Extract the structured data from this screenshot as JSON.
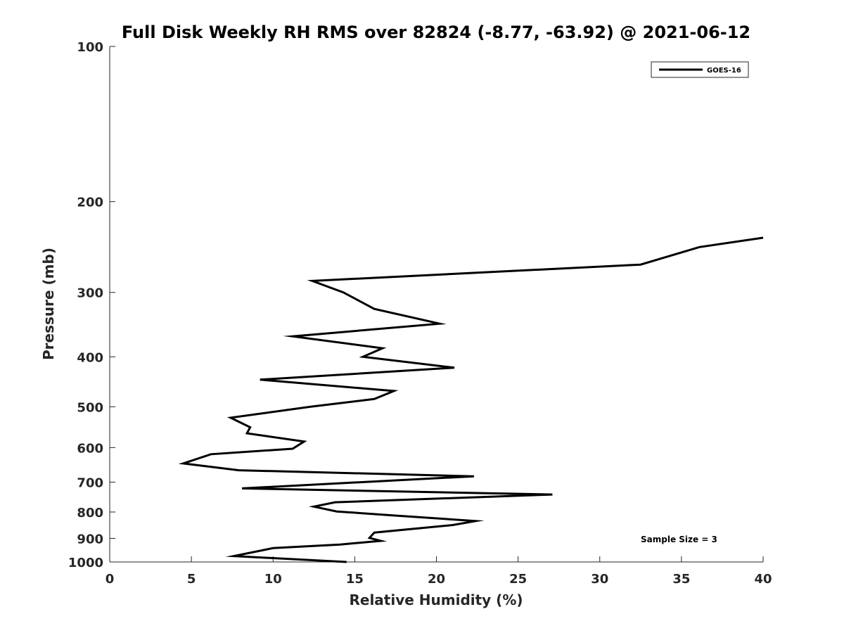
{
  "chart_data": {
    "type": "line",
    "title": "Full Disk Weekly RH RMS over 82824 (-8.77, -63.92) @ 2021-06-12",
    "xlabel": "Relative Humidity (%)",
    "ylabel": "Pressure (mb)",
    "xlim": [
      0,
      40
    ],
    "ylim": [
      100,
      1000
    ],
    "y_scale": "log",
    "y_reversed": true,
    "x_ticks": [
      "0",
      "5",
      "10",
      "15",
      "20",
      "25",
      "30",
      "35",
      "40"
    ],
    "y_ticks": [
      "100",
      "200",
      "300",
      "400",
      "500",
      "600",
      "700",
      "800",
      "900",
      "1000"
    ],
    "grid": false,
    "legend_position": "top-right",
    "annotation": "Sample Size = 3",
    "series": [
      {
        "name": "GOES-16",
        "color": "#000000",
        "points": [
          {
            "x": 40.0,
            "y": 235
          },
          {
            "x": 36.1,
            "y": 245
          },
          {
            "x": 32.5,
            "y": 265
          },
          {
            "x": 12.4,
            "y": 285
          },
          {
            "x": 14.3,
            "y": 300
          },
          {
            "x": 16.2,
            "y": 323
          },
          {
            "x": 20.2,
            "y": 345
          },
          {
            "x": 11.2,
            "y": 365
          },
          {
            "x": 16.7,
            "y": 385
          },
          {
            "x": 15.5,
            "y": 400
          },
          {
            "x": 21.1,
            "y": 420
          },
          {
            "x": 9.2,
            "y": 443
          },
          {
            "x": 17.4,
            "y": 466
          },
          {
            "x": 16.2,
            "y": 483
          },
          {
            "x": 12.3,
            "y": 500
          },
          {
            "x": 7.4,
            "y": 525
          },
          {
            "x": 8.6,
            "y": 548
          },
          {
            "x": 8.4,
            "y": 563
          },
          {
            "x": 11.9,
            "y": 584
          },
          {
            "x": 11.2,
            "y": 603
          },
          {
            "x": 6.2,
            "y": 618
          },
          {
            "x": 4.5,
            "y": 644
          },
          {
            "x": 7.9,
            "y": 664
          },
          {
            "x": 22.3,
            "y": 682
          },
          {
            "x": 8.1,
            "y": 720
          },
          {
            "x": 27.1,
            "y": 740
          },
          {
            "x": 13.8,
            "y": 766
          },
          {
            "x": 12.5,
            "y": 781
          },
          {
            "x": 13.9,
            "y": 798
          },
          {
            "x": 17.3,
            "y": 812
          },
          {
            "x": 22.4,
            "y": 833
          },
          {
            "x": 21.0,
            "y": 848
          },
          {
            "x": 16.2,
            "y": 877
          },
          {
            "x": 15.9,
            "y": 898
          },
          {
            "x": 16.6,
            "y": 910
          },
          {
            "x": 14.1,
            "y": 925
          },
          {
            "x": 10.0,
            "y": 940
          },
          {
            "x": 7.6,
            "y": 974
          },
          {
            "x": 14.5,
            "y": 1000
          }
        ]
      }
    ]
  }
}
